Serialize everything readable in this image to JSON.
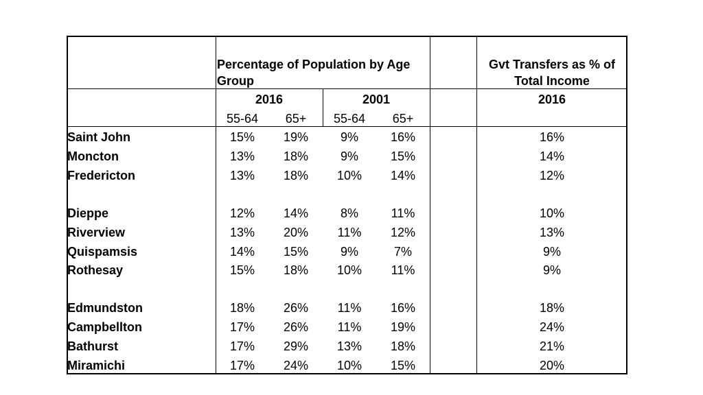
{
  "header": {
    "pct_title": "Percentage of Population by Age Group",
    "gvt_title": "Gvt Transfers as % of Total Income",
    "year_2016": "2016",
    "year_2001": "2001",
    "gvt_year": "2016",
    "age_55_64_a": "55-64",
    "age_65_a": "65+",
    "age_55_64_b": "55-64",
    "age_65_b": "65+"
  },
  "rows": [
    {
      "city": "Saint John",
      "p16_55": "15%",
      "p16_65": "19%",
      "p01_55": "9%",
      "p01_65": "16%",
      "gvt": "16%"
    },
    {
      "city": "Moncton",
      "p16_55": "13%",
      "p16_65": "18%",
      "p01_55": "9%",
      "p01_65": "15%",
      "gvt": "14%"
    },
    {
      "city": "Fredericton",
      "p16_55": "13%",
      "p16_65": "18%",
      "p01_55": "10%",
      "p01_65": "14%",
      "gvt": "12%"
    },
    {
      "city": "Dieppe",
      "p16_55": "12%",
      "p16_65": "14%",
      "p01_55": "8%",
      "p01_65": "11%",
      "gvt": "10%"
    },
    {
      "city": "Riverview",
      "p16_55": "13%",
      "p16_65": "20%",
      "p01_55": "11%",
      "p01_65": "12%",
      "gvt": "13%"
    },
    {
      "city": "Quispamsis",
      "p16_55": "14%",
      "p16_65": "15%",
      "p01_55": "9%",
      "p01_65": "7%",
      "gvt": "9%"
    },
    {
      "city": "Rothesay",
      "p16_55": "15%",
      "p16_65": "18%",
      "p01_55": "10%",
      "p01_65": "11%",
      "gvt": "9%"
    },
    {
      "city": "Edmundston",
      "p16_55": "18%",
      "p16_65": "26%",
      "p01_55": "11%",
      "p01_65": "16%",
      "gvt": "18%"
    },
    {
      "city": "Campbellton",
      "p16_55": "17%",
      "p16_65": "26%",
      "p01_55": "11%",
      "p01_65": "19%",
      "gvt": "24%"
    },
    {
      "city": "Bathurst",
      "p16_55": "17%",
      "p16_65": "29%",
      "p01_55": "13%",
      "p01_65": "18%",
      "gvt": "21%"
    },
    {
      "city": "Miramichi",
      "p16_55": "17%",
      "p16_65": "24%",
      "p01_55": "10%",
      "p01_65": "15%",
      "gvt": "20%"
    }
  ]
}
